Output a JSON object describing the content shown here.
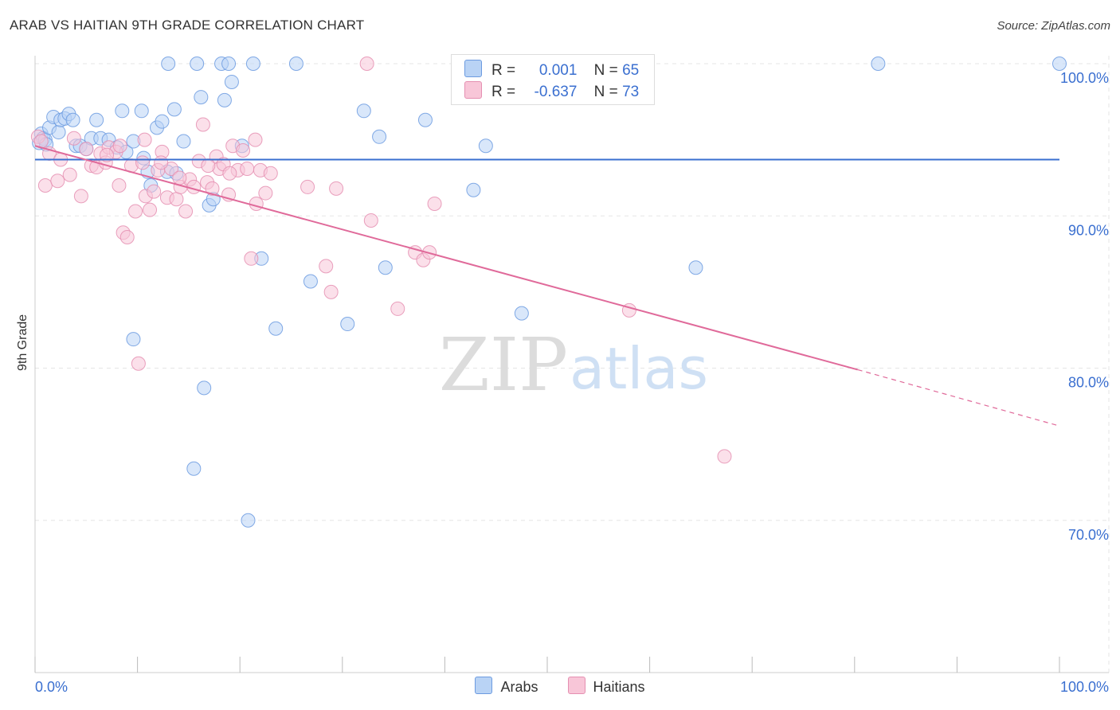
{
  "title": "ARAB VS HAITIAN 9TH GRADE CORRELATION CHART",
  "source": "Source: ZipAtlas.com",
  "watermark": {
    "zip": "ZIP",
    "atlas": "atlas"
  },
  "legend_top": [
    {
      "r_label": "R =",
      "r_value": "0.001",
      "n_label": "N =",
      "n_value": "65"
    },
    {
      "r_label": "R =",
      "r_value": "-0.637",
      "n_label": "N =",
      "n_value": "73"
    }
  ],
  "chart_data": {
    "type": "scatter",
    "title": "ARAB VS HAITIAN 9TH GRADE CORRELATION CHART",
    "xlabel": "",
    "ylabel": "9th Grade",
    "xlim": [
      0,
      100
    ],
    "ylim": [
      60,
      101.5
    ],
    "x_tick_labels": [
      "0.0%",
      "100.0%"
    ],
    "y_ticks": [
      70,
      80,
      90,
      100
    ],
    "y_tick_labels": [
      "70.0%",
      "80.0%",
      "90.0%",
      "100.0%"
    ],
    "grid": true,
    "legend_position": "bottom",
    "series": [
      {
        "name": "Arabs",
        "color": "#6c9be0",
        "fill": "#b9d3f5",
        "r": "0.001",
        "n": "65",
        "trend": {
          "x": [
            0,
            100
          ],
          "y": [
            93.7,
            93.7
          ],
          "style": "solid"
        },
        "points": [
          [
            0.4,
            94.8
          ],
          [
            0.6,
            95.4
          ],
          [
            0.8,
            95.1
          ],
          [
            1.0,
            95.0
          ],
          [
            1.1,
            94.7
          ],
          [
            1.4,
            95.8
          ],
          [
            1.8,
            96.5
          ],
          [
            2.3,
            95.5
          ],
          [
            2.5,
            96.3
          ],
          [
            2.9,
            96.4
          ],
          [
            3.3,
            96.7
          ],
          [
            3.7,
            96.3
          ],
          [
            4.0,
            94.6
          ],
          [
            4.4,
            94.6
          ],
          [
            5.0,
            94.4
          ],
          [
            5.5,
            95.1
          ],
          [
            6.0,
            96.3
          ],
          [
            6.4,
            95.1
          ],
          [
            7.2,
            95.0
          ],
          [
            8.0,
            94.5
          ],
          [
            8.5,
            96.9
          ],
          [
            8.9,
            94.2
          ],
          [
            9.6,
            94.9
          ],
          [
            10.4,
            96.9
          ],
          [
            10.6,
            93.8
          ],
          [
            11.0,
            92.9
          ],
          [
            11.3,
            92.0
          ],
          [
            11.9,
            95.8
          ],
          [
            12.4,
            96.2
          ],
          [
            12.9,
            92.9
          ],
          [
            13.6,
            97.0
          ],
          [
            13.8,
            92.8
          ],
          [
            14.5,
            94.9
          ],
          [
            13.0,
            100.0
          ],
          [
            15.8,
            100.0
          ],
          [
            16.2,
            97.8
          ],
          [
            17.0,
            90.7
          ],
          [
            17.4,
            91.1
          ],
          [
            18.2,
            100.0
          ],
          [
            18.5,
            97.6
          ],
          [
            18.9,
            100.0
          ],
          [
            19.2,
            98.8
          ],
          [
            20.2,
            94.6
          ],
          [
            21.3,
            100.0
          ],
          [
            22.1,
            87.2
          ],
          [
            23.5,
            82.6
          ],
          [
            25.5,
            100.0
          ],
          [
            26.9,
            85.7
          ],
          [
            30.5,
            82.9
          ],
          [
            32.1,
            96.9
          ],
          [
            33.6,
            95.2
          ],
          [
            34.2,
            86.6
          ],
          [
            38.1,
            96.3
          ],
          [
            42.8,
            91.7
          ],
          [
            44.0,
            94.6
          ],
          [
            45.5,
            100.0
          ],
          [
            47.5,
            83.6
          ],
          [
            55.4,
            100.0
          ],
          [
            64.5,
            86.6
          ],
          [
            82.3,
            100.0
          ],
          [
            100.0,
            100.0
          ],
          [
            9.6,
            81.9
          ],
          [
            16.5,
            78.7
          ],
          [
            15.5,
            73.4
          ],
          [
            20.8,
            70.0
          ]
        ]
      },
      {
        "name": "Haitians",
        "color": "#e58fb1",
        "fill": "#f8c6d8",
        "r": "-0.637",
        "n": "73",
        "trend": {
          "x": [
            0,
            80.3
          ],
          "y": [
            94.6,
            79.9
          ],
          "style": "solid",
          "extension": {
            "x": [
              80.3,
              100
            ],
            "y": [
              79.9,
              76.2
            ],
            "style": "dashed"
          }
        },
        "points": [
          [
            0.3,
            95.2
          ],
          [
            0.6,
            94.9
          ],
          [
            1.0,
            92.0
          ],
          [
            1.4,
            94.1
          ],
          [
            2.2,
            92.3
          ],
          [
            2.5,
            93.7
          ],
          [
            3.4,
            92.7
          ],
          [
            3.8,
            95.1
          ],
          [
            4.5,
            91.3
          ],
          [
            5.0,
            94.4
          ],
          [
            5.5,
            93.3
          ],
          [
            6.0,
            93.2
          ],
          [
            6.4,
            94.1
          ],
          [
            6.9,
            93.5
          ],
          [
            7.2,
            94.5
          ],
          [
            7.9,
            94.2
          ],
          [
            8.2,
            92.0
          ],
          [
            8.6,
            88.9
          ],
          [
            9.0,
            88.6
          ],
          [
            9.4,
            93.3
          ],
          [
            9.8,
            90.3
          ],
          [
            10.1,
            80.3
          ],
          [
            10.5,
            93.5
          ],
          [
            10.8,
            91.3
          ],
          [
            11.2,
            90.4
          ],
          [
            11.6,
            91.6
          ],
          [
            12.0,
            93.0
          ],
          [
            12.4,
            94.2
          ],
          [
            12.9,
            91.2
          ],
          [
            13.3,
            93.1
          ],
          [
            13.8,
            91.1
          ],
          [
            14.2,
            91.9
          ],
          [
            14.7,
            90.3
          ],
          [
            15.1,
            92.4
          ],
          [
            15.5,
            91.9
          ],
          [
            16.0,
            93.6
          ],
          [
            16.4,
            96.0
          ],
          [
            16.8,
            92.2
          ],
          [
            17.3,
            91.8
          ],
          [
            17.7,
            93.9
          ],
          [
            18.0,
            93.1
          ],
          [
            18.4,
            93.4
          ],
          [
            18.9,
            91.4
          ],
          [
            19.3,
            94.6
          ],
          [
            19.8,
            93.0
          ],
          [
            20.3,
            94.3
          ],
          [
            20.7,
            93.1
          ],
          [
            21.1,
            87.2
          ],
          [
            21.6,
            90.8
          ],
          [
            22.0,
            93.0
          ],
          [
            22.5,
            91.5
          ],
          [
            26.6,
            91.9
          ],
          [
            28.4,
            86.7
          ],
          [
            28.9,
            85.0
          ],
          [
            29.4,
            91.8
          ],
          [
            32.4,
            100.0
          ],
          [
            32.8,
            89.7
          ],
          [
            35.4,
            83.9
          ],
          [
            37.1,
            87.6
          ],
          [
            37.9,
            87.1
          ],
          [
            38.5,
            87.6
          ],
          [
            39.0,
            90.8
          ],
          [
            58.0,
            83.8
          ],
          [
            67.3,
            74.2
          ],
          [
            7.0,
            94.0
          ],
          [
            8.3,
            94.6
          ],
          [
            10.7,
            95.0
          ],
          [
            12.3,
            93.5
          ],
          [
            14.1,
            92.5
          ],
          [
            16.9,
            93.3
          ],
          [
            19.0,
            92.8
          ],
          [
            21.5,
            95.0
          ],
          [
            23.0,
            92.8
          ]
        ]
      }
    ]
  }
}
